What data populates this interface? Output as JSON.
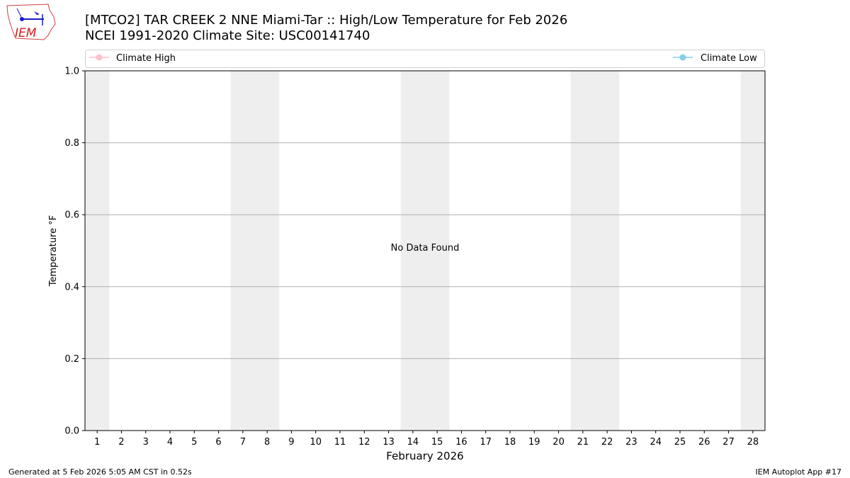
{
  "logo": {
    "text": "IEM"
  },
  "title_line1": "[MTCO2] TAR CREEK 2 NNE Miami-Tar :: High/Low Temperature for Feb 2026",
  "title_line2": "NCEI 1991-2020 Climate Site: USC00141740",
  "footer_left": "Generated at 5 Feb 2026 5:05 AM CST in 0.52s",
  "footer_right": "IEM Autoplot App #17",
  "chart_data": {
    "type": "line",
    "xlabel": "February 2026",
    "ylabel": "Temperature °F",
    "xlim": [
      0.5,
      28.5
    ],
    "ylim": [
      0.0,
      1.0
    ],
    "x_ticks": [
      1,
      2,
      3,
      4,
      5,
      6,
      7,
      8,
      9,
      10,
      11,
      12,
      13,
      14,
      15,
      16,
      17,
      18,
      19,
      20,
      21,
      22,
      23,
      24,
      25,
      26,
      27,
      28
    ],
    "y_ticks": [
      "0.0",
      "0.2",
      "0.4",
      "0.6",
      "0.8",
      "1.0"
    ],
    "grid": "horizontal",
    "weekend_shading": [
      [
        0.5,
        1.5
      ],
      [
        6.5,
        8.5
      ],
      [
        13.5,
        15.5
      ],
      [
        20.5,
        22.5
      ],
      [
        27.5,
        28.5
      ]
    ],
    "shading_color": "#eeeeee",
    "annotation": "No Data Found",
    "legend_placement": "top",
    "series": [
      {
        "name": "Climate High",
        "color": "#ffc0cb",
        "values": []
      },
      {
        "name": "Climate Low",
        "color": "#87ceeb",
        "values": []
      }
    ]
  }
}
